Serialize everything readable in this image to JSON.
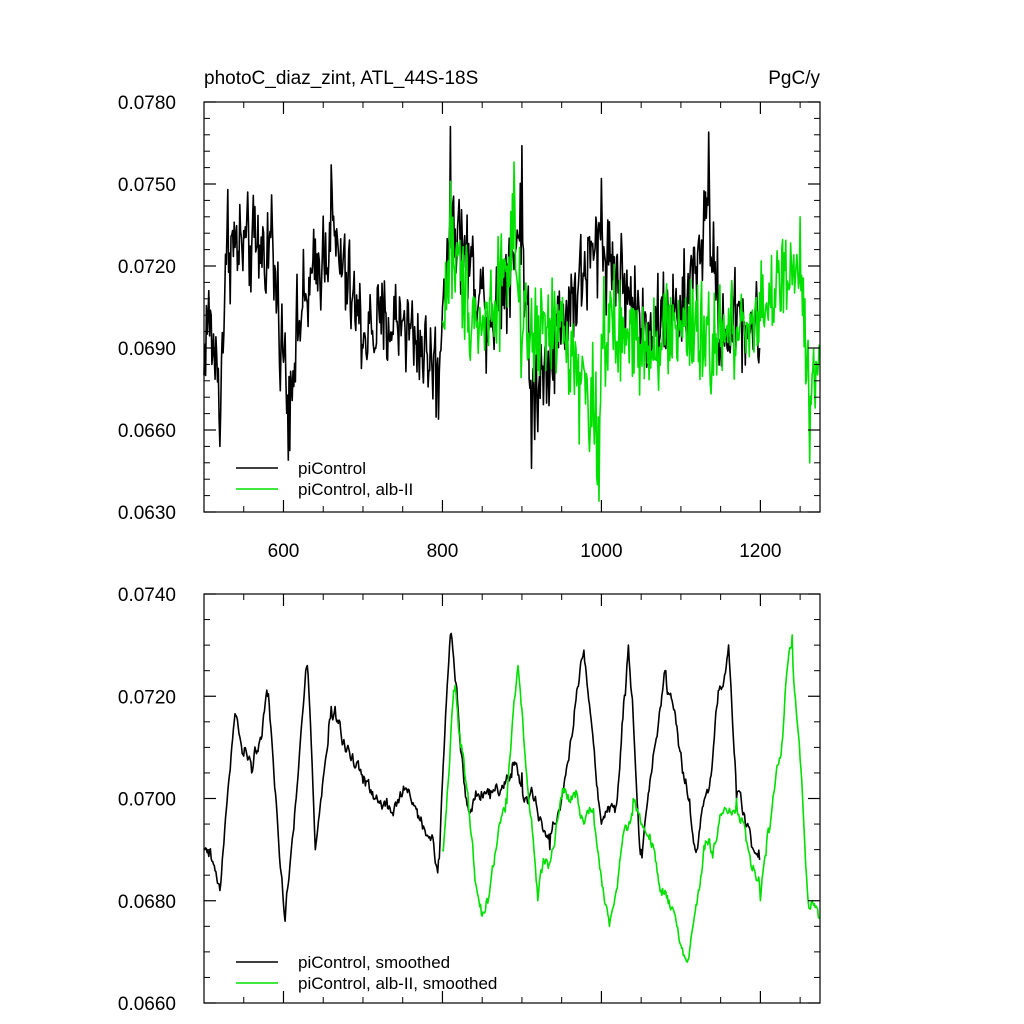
{
  "chart_data": [
    {
      "type": "line",
      "title": "photoC_diaz_zint, ATL_44S-18S",
      "units": "PgC/y",
      "xlabel": "",
      "ylabel": "",
      "xlim": [
        500,
        1275
      ],
      "ylim": [
        0.063,
        0.078
      ],
      "xticks": [
        600,
        800,
        1000,
        1200
      ],
      "xtick_labels": [
        "600",
        "800",
        "1000",
        "1200"
      ],
      "yticks": [
        0.063,
        0.066,
        0.069,
        0.072,
        0.075,
        0.078
      ],
      "ytick_labels": [
        "0.0630",
        "0.0660",
        "0.0690",
        "0.0720",
        "0.0750",
        "0.0780"
      ],
      "grid": false,
      "legend_position": "bottom-left",
      "series": [
        {
          "name": "piControl",
          "color": "#000000",
          "x_start": 500,
          "x_step": 1,
          "count": 700,
          "baseline": 0.0702,
          "amplitude": 0.0018,
          "samples_x": [
            500,
            505,
            520,
            530,
            585,
            606,
            620,
            660,
            700,
            750,
            795,
            800,
            810,
            860,
            900,
            912,
            950,
            1000,
            1050,
            1100,
            1135,
            1150,
            1175,
            1199
          ],
          "samples_y": [
            0.068,
            0.0702,
            0.0654,
            0.0748,
            0.0746,
            0.0649,
            0.07,
            0.0757,
            0.069,
            0.07,
            0.0664,
            0.0705,
            0.0771,
            0.07,
            0.0764,
            0.0646,
            0.07,
            0.0752,
            0.0697,
            0.07,
            0.0769,
            0.069,
            0.07,
            0.069
          ]
        },
        {
          "name": "piControl, alb-II",
          "color": "#00e000",
          "x_start": 800,
          "x_step": 1,
          "count": 475,
          "baseline": 0.0695,
          "amplitude": 0.002,
          "samples_x": [
            800,
            810,
            850,
            890,
            900,
            950,
            997,
            1000,
            1050,
            1100,
            1130,
            1175,
            1250,
            1262,
            1275
          ],
          "samples_y": [
            0.07,
            0.0751,
            0.0697,
            0.0758,
            0.069,
            0.07,
            0.0634,
            0.0695,
            0.069,
            0.07,
            0.0688,
            0.07,
            0.0738,
            0.0648,
            0.068
          ]
        }
      ],
      "legend": [
        {
          "label": "piControl",
          "color": "#000000"
        },
        {
          "label": "piControl, alb-II",
          "color": "#00e000"
        }
      ]
    },
    {
      "type": "line",
      "title": "",
      "xlabel": "",
      "ylabel": "",
      "xlim": [
        500,
        1275
      ],
      "ylim": [
        0.066,
        0.074
      ],
      "yticks": [
        0.066,
        0.068,
        0.07,
        0.072,
        0.074
      ],
      "ytick_labels": [
        "0.0660",
        "0.0680",
        "0.0700",
        "0.0720",
        "0.0740"
      ],
      "grid": false,
      "legend_position": "bottom-left",
      "series": [
        {
          "name": "piControl, smoothed",
          "color": "#000000",
          "x_start": 500,
          "x_step": 1,
          "count": 700,
          "samples_x": [
            500,
            520,
            538,
            560,
            580,
            602,
            630,
            640,
            660,
            700,
            730,
            760,
            795,
            810,
            830,
            860,
            900,
            935,
            950,
            978,
            1000,
            1020,
            1034,
            1050,
            1080,
            1120,
            1160,
            1170,
            1199
          ],
          "samples_y": [
            0.069,
            0.0682,
            0.0715,
            0.0705,
            0.072,
            0.0676,
            0.0726,
            0.069,
            0.0718,
            0.0703,
            0.07,
            0.07,
            0.0688,
            0.0732,
            0.07,
            0.07,
            0.0705,
            0.069,
            0.07,
            0.0729,
            0.0695,
            0.07,
            0.073,
            0.069,
            0.0725,
            0.069,
            0.073,
            0.07,
            0.0688
          ]
        },
        {
          "name": "piControl, alb-II, smoothed",
          "color": "#00e000",
          "x_start": 800,
          "x_step": 1,
          "count": 475,
          "samples_x": [
            800,
            815,
            850,
            880,
            895,
            920,
            950,
            990,
            1010,
            1040,
            1080,
            1108,
            1130,
            1170,
            1200,
            1240,
            1260,
            1275
          ],
          "samples_y": [
            0.069,
            0.0721,
            0.0677,
            0.07,
            0.0726,
            0.068,
            0.07,
            0.0698,
            0.0675,
            0.07,
            0.0682,
            0.0668,
            0.069,
            0.07,
            0.068,
            0.0732,
            0.068,
            0.0675
          ]
        }
      ],
      "legend": [
        {
          "label": "piControl, smoothed",
          "color": "#000000"
        },
        {
          "label": "piControl, alb-II, smoothed",
          "color": "#00e000"
        }
      ]
    }
  ]
}
